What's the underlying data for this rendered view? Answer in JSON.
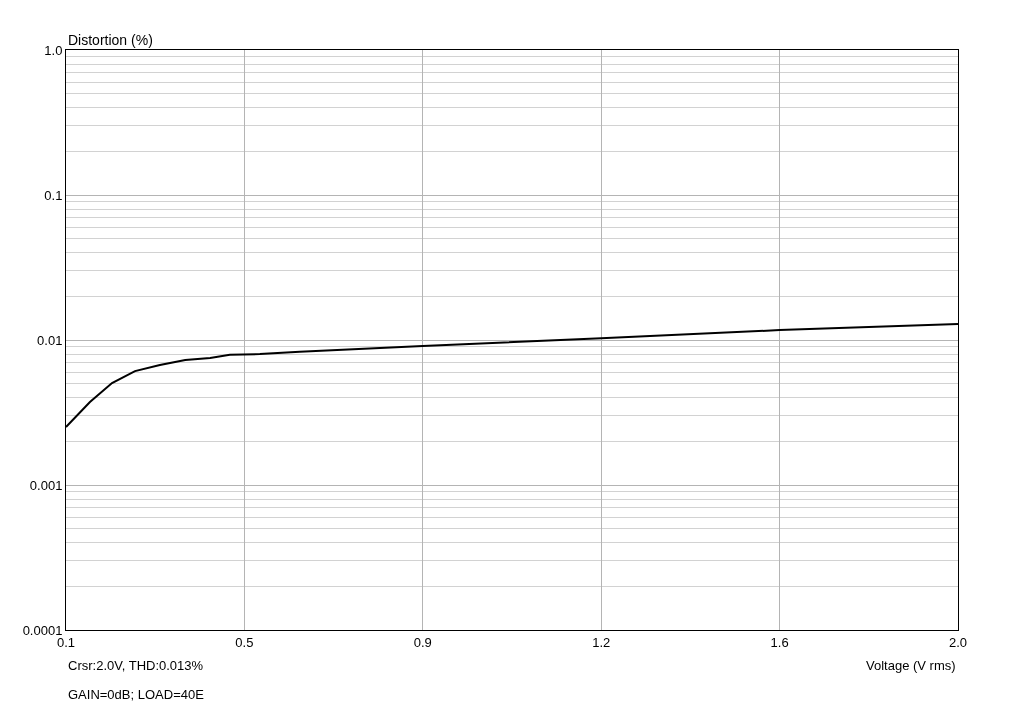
{
  "chart_data": {
    "type": "line",
    "xlabel": "Voltage (V rms)",
    "ylabel": "Distortion (%)",
    "x": [
      0.1,
      0.151,
      0.198,
      0.247,
      0.3,
      0.354,
      0.407,
      0.449,
      0.513,
      0.598,
      0.86,
      1.24,
      1.62,
      2.0
    ],
    "series": [
      {
        "color": "#000000",
        "values": [
          0.00251,
          0.00373,
          0.00505,
          0.0061,
          0.00673,
          0.00728,
          0.00752,
          0.0079,
          0.008,
          0.0083,
          0.0091,
          0.0103,
          0.0117,
          0.0129
        ]
      }
    ],
    "xlim": [
      0.1,
      2.0
    ],
    "xticks": [
      0.1,
      {
        "value": 0.48,
        "label": "0.5"
      },
      {
        "value": 0.86,
        "label": "0.9"
      },
      {
        "value": 1.24,
        "label": "1.2"
      },
      {
        "value": 1.62,
        "label": "1.6"
      },
      {
        "value": 2.0,
        "label": "2.0"
      }
    ],
    "ylim": [
      0.0001,
      1
    ],
    "yticks": [
      0.0001,
      0.001,
      0.01,
      0.1,
      {
        "value": 1,
        "label": "1.0"
      }
    ],
    "log": "y",
    "grid": true,
    "marker": "none",
    "line_style": "solid",
    "annotations": [
      "Crsr:2.0V, THD:0.013%",
      "GAIN=0dB; LOAD=40E"
    ]
  }
}
